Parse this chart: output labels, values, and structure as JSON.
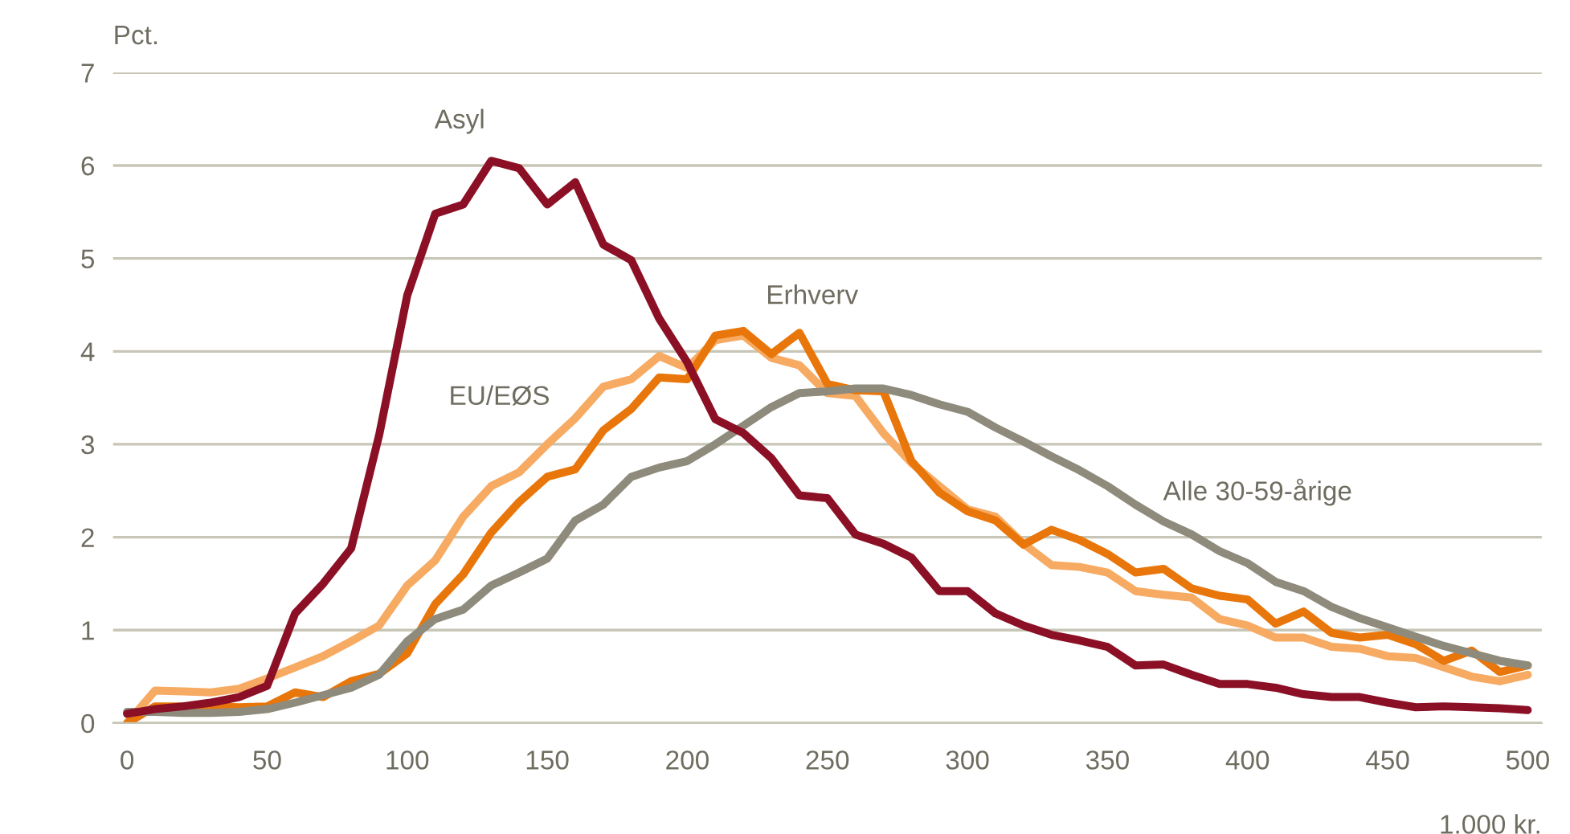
{
  "chart_data": {
    "type": "line",
    "ylabel": "Pct.",
    "xlabel": "1.000 kr.",
    "x": [
      0,
      10,
      20,
      30,
      40,
      50,
      60,
      70,
      80,
      90,
      100,
      110,
      120,
      130,
      140,
      150,
      160,
      170,
      180,
      190,
      200,
      210,
      220,
      230,
      240,
      250,
      260,
      270,
      280,
      290,
      300,
      310,
      320,
      330,
      340,
      350,
      360,
      370,
      380,
      390,
      400,
      410,
      420,
      430,
      440,
      450,
      460,
      470,
      480,
      490,
      500
    ],
    "series": [
      {
        "name": "EU/EØS",
        "color": "#f7aa62",
        "values": [
          0.0,
          0.35,
          0.34,
          0.33,
          0.37,
          0.48,
          0.6,
          0.72,
          0.88,
          1.05,
          1.48,
          1.75,
          2.22,
          2.55,
          2.7,
          3.0,
          3.28,
          3.62,
          3.7,
          3.95,
          3.82,
          4.12,
          4.17,
          3.93,
          3.85,
          3.55,
          3.52,
          3.12,
          2.8,
          2.55,
          2.3,
          2.22,
          1.93,
          1.7,
          1.68,
          1.62,
          1.42,
          1.38,
          1.35,
          1.12,
          1.05,
          0.92,
          0.92,
          0.82,
          0.8,
          0.72,
          0.7,
          0.6,
          0.5,
          0.45,
          0.52
        ]
      },
      {
        "name": "Erhverv",
        "color": "#e8760a",
        "values": [
          0.0,
          0.18,
          0.18,
          0.18,
          0.17,
          0.18,
          0.33,
          0.28,
          0.45,
          0.53,
          0.75,
          1.28,
          1.6,
          2.05,
          2.38,
          2.65,
          2.73,
          3.15,
          3.38,
          3.72,
          3.7,
          4.17,
          4.22,
          3.97,
          4.2,
          3.65,
          3.58,
          3.57,
          2.82,
          2.48,
          2.28,
          2.18,
          1.92,
          2.08,
          1.97,
          1.82,
          1.62,
          1.66,
          1.45,
          1.37,
          1.33,
          1.07,
          1.2,
          0.97,
          0.92,
          0.95,
          0.85,
          0.67,
          0.78,
          0.55,
          0.62
        ]
      },
      {
        "name": "Alle 30-59-årige",
        "color": "#8e8b7c",
        "values": [
          0.12,
          0.12,
          0.11,
          0.11,
          0.12,
          0.15,
          0.22,
          0.3,
          0.38,
          0.52,
          0.88,
          1.12,
          1.22,
          1.48,
          1.62,
          1.77,
          2.18,
          2.35,
          2.65,
          2.75,
          2.82,
          3.0,
          3.2,
          3.4,
          3.55,
          3.57,
          3.6,
          3.6,
          3.53,
          3.43,
          3.35,
          3.18,
          3.03,
          2.87,
          2.72,
          2.55,
          2.35,
          2.17,
          2.03,
          1.85,
          1.72,
          1.52,
          1.42,
          1.25,
          1.13,
          1.03,
          0.93,
          0.83,
          0.75,
          0.67,
          0.62
        ]
      },
      {
        "name": "Asyl",
        "color": "#8b1026",
        "values": [
          0.1,
          0.15,
          0.18,
          0.22,
          0.28,
          0.4,
          1.18,
          1.5,
          1.88,
          3.1,
          4.6,
          5.48,
          5.58,
          6.05,
          5.97,
          5.58,
          5.82,
          5.15,
          4.98,
          4.35,
          3.88,
          3.27,
          3.12,
          2.85,
          2.45,
          2.42,
          2.03,
          1.93,
          1.78,
          1.42,
          1.42,
          1.18,
          1.05,
          0.95,
          0.89,
          0.82,
          0.62,
          0.63,
          0.52,
          0.42,
          0.42,
          0.38,
          0.31,
          0.28,
          0.28,
          0.22,
          0.17,
          0.18,
          0.17,
          0.16,
          0.14
        ]
      }
    ],
    "xlim": [
      -5,
      505
    ],
    "xticks": [
      0,
      50,
      100,
      150,
      200,
      250,
      300,
      350,
      400,
      450,
      500
    ],
    "ylim": [
      0,
      7
    ],
    "yticks": [
      0,
      1,
      2,
      3,
      4,
      5,
      6,
      7
    ],
    "grid": "y",
    "marker": "none",
    "line_style": "solid",
    "legend": false
  }
}
